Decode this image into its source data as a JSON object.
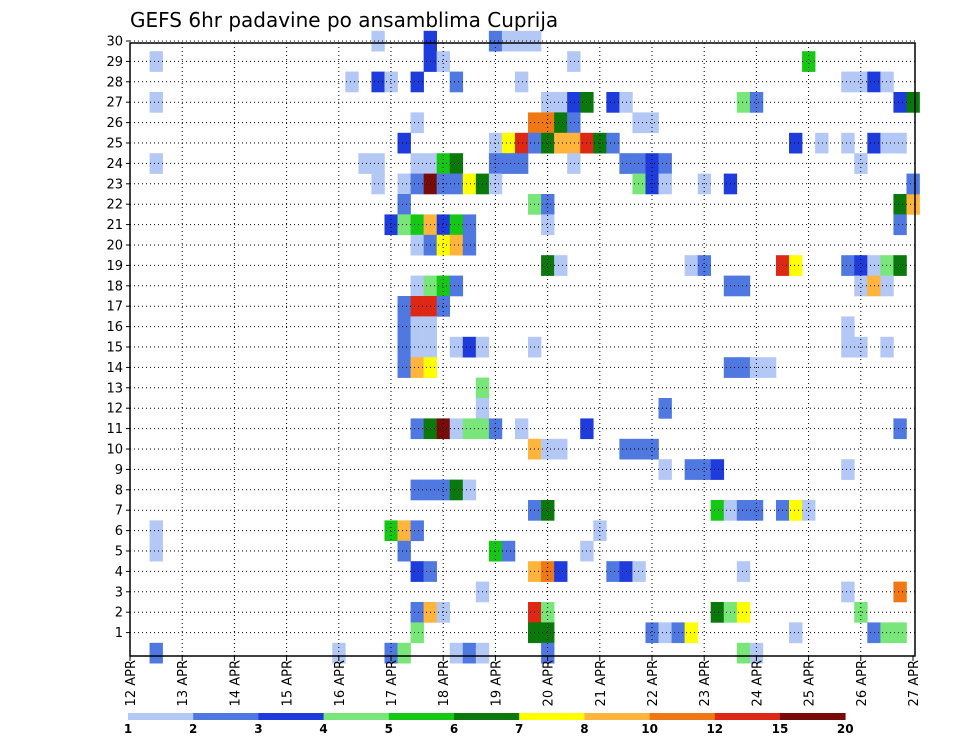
{
  "chart_data": {
    "type": "heatmap",
    "title": "GEFS 6hr padavine po ansamblima Cuprija",
    "xlabel": "",
    "ylabel": "",
    "x_tick_labels": [
      "12 APR",
      "13 APR",
      "14 APR",
      "15 APR",
      "16 APR",
      "17 APR",
      "18 APR",
      "19 APR",
      "20 APR",
      "21 APR",
      "22 APR",
      "23 APR",
      "24 APR",
      "25 APR",
      "26 APR",
      "27 APR"
    ],
    "y_tick_labels": [
      "1",
      "2",
      "3",
      "4",
      "5",
      "6",
      "7",
      "8",
      "9",
      "10",
      "11",
      "12",
      "13",
      "14",
      "15",
      "16",
      "17",
      "18",
      "19",
      "20",
      "21",
      "22",
      "23",
      "24",
      "25",
      "26",
      "27",
      "28",
      "29",
      "30"
    ],
    "xlim_steps": [
      0,
      60
    ],
    "ylim_members": [
      1,
      30
    ],
    "grid": true,
    "colorbar": {
      "boundaries": [
        "1",
        "2",
        "3",
        "4",
        "5",
        "6",
        "7",
        "8",
        "10",
        "12",
        "15",
        "20"
      ],
      "colors": [
        "#b4c8f5",
        "#5078e1",
        "#1e3cdc",
        "#78e678",
        "#14c814",
        "#0a780a",
        "#ffff00",
        "#ffb43c",
        "#f07814",
        "#dc2814",
        "#780a0a"
      ]
    },
    "cells": [
      [
        29,
        2,
        1
      ],
      [
        27,
        2,
        1
      ],
      [
        24,
        2,
        1
      ],
      [
        6,
        2,
        1
      ],
      [
        5,
        2,
        1
      ],
      [
        0,
        2,
        2
      ],
      [
        28,
        17,
        1
      ],
      [
        30,
        19,
        1
      ],
      [
        29,
        23,
        3
      ],
      [
        30,
        23,
        3
      ],
      [
        28,
        19,
        3
      ],
      [
        28,
        20,
        1
      ],
      [
        28,
        22,
        3
      ],
      [
        28,
        25,
        2
      ],
      [
        29,
        24,
        1
      ],
      [
        30,
        28,
        2
      ],
      [
        30,
        29,
        1
      ],
      [
        30,
        30,
        1
      ],
      [
        30,
        31,
        1
      ],
      [
        28,
        30,
        1
      ],
      [
        29,
        34,
        1
      ],
      [
        27,
        32,
        1
      ],
      [
        27,
        33,
        1
      ],
      [
        27,
        34,
        3
      ],
      [
        27,
        35,
        6
      ],
      [
        27,
        37,
        3
      ],
      [
        27,
        38,
        1
      ],
      [
        26,
        22,
        1
      ],
      [
        26,
        31,
        9
      ],
      [
        26,
        32,
        9
      ],
      [
        26,
        33,
        6
      ],
      [
        26,
        34,
        2
      ],
      [
        26,
        39,
        1
      ],
      [
        26,
        40,
        1
      ],
      [
        25,
        21,
        3
      ],
      [
        25,
        28,
        1
      ],
      [
        25,
        29,
        7
      ],
      [
        25,
        30,
        10
      ],
      [
        25,
        31,
        2
      ],
      [
        25,
        32,
        6
      ],
      [
        25,
        33,
        8
      ],
      [
        25,
        34,
        8
      ],
      [
        25,
        35,
        10
      ],
      [
        25,
        36,
        6
      ],
      [
        25,
        37,
        2
      ],
      [
        24,
        18,
        1
      ],
      [
        24,
        19,
        1
      ],
      [
        24,
        22,
        1
      ],
      [
        24,
        23,
        1
      ],
      [
        24,
        24,
        5
      ],
      [
        24,
        25,
        6
      ],
      [
        24,
        28,
        2
      ],
      [
        24,
        29,
        2
      ],
      [
        24,
        30,
        2
      ],
      [
        24,
        34,
        1
      ],
      [
        24,
        38,
        2
      ],
      [
        24,
        39,
        2
      ],
      [
        24,
        40,
        3
      ],
      [
        24,
        41,
        2
      ],
      [
        23,
        19,
        1
      ],
      [
        23,
        21,
        1
      ],
      [
        23,
        22,
        2
      ],
      [
        23,
        23,
        11
      ],
      [
        23,
        24,
        2
      ],
      [
        23,
        25,
        2
      ],
      [
        23,
        26,
        7
      ],
      [
        23,
        27,
        6
      ],
      [
        23,
        28,
        1
      ],
      [
        23,
        39,
        4
      ],
      [
        23,
        40,
        3
      ],
      [
        23,
        41,
        1
      ],
      [
        23,
        44,
        1
      ],
      [
        23,
        46,
        3
      ],
      [
        22,
        21,
        2
      ],
      [
        22,
        31,
        4
      ],
      [
        22,
        32,
        2
      ],
      [
        21,
        20,
        3
      ],
      [
        21,
        21,
        4
      ],
      [
        21,
        22,
        5
      ],
      [
        21,
        23,
        8
      ],
      [
        21,
        24,
        3
      ],
      [
        21,
        25,
        5
      ],
      [
        21,
        26,
        2
      ],
      [
        21,
        32,
        1
      ],
      [
        20,
        22,
        1
      ],
      [
        20,
        23,
        2
      ],
      [
        20,
        24,
        7
      ],
      [
        20,
        25,
        8
      ],
      [
        20,
        26,
        2
      ],
      [
        19,
        32,
        6
      ],
      [
        19,
        33,
        1
      ],
      [
        19,
        43,
        1
      ],
      [
        19,
        44,
        2
      ],
      [
        18,
        22,
        1
      ],
      [
        18,
        23,
        4
      ],
      [
        18,
        24,
        5
      ],
      [
        18,
        25,
        2
      ],
      [
        18,
        46,
        2
      ],
      [
        17,
        21,
        2
      ],
      [
        17,
        22,
        10
      ],
      [
        17,
        23,
        10
      ],
      [
        17,
        24,
        2
      ],
      [
        16,
        21,
        2
      ],
      [
        16,
        22,
        1
      ],
      [
        16,
        23,
        1
      ],
      [
        15,
        21,
        2
      ],
      [
        15,
        22,
        1
      ],
      [
        15,
        23,
        1
      ],
      [
        15,
        25,
        1
      ],
      [
        15,
        26,
        3
      ],
      [
        15,
        27,
        1
      ],
      [
        15,
        31,
        1
      ],
      [
        14,
        21,
        2
      ],
      [
        14,
        22,
        8
      ],
      [
        14,
        23,
        7
      ],
      [
        14,
        46,
        2
      ],
      [
        14,
        47,
        2
      ],
      [
        14,
        48,
        1
      ],
      [
        14,
        49,
        1
      ],
      [
        13,
        27,
        4
      ],
      [
        12,
        27,
        1
      ],
      [
        12,
        41,
        2
      ],
      [
        11,
        22,
        2
      ],
      [
        11,
        23,
        6
      ],
      [
        11,
        24,
        11
      ],
      [
        11,
        25,
        1
      ],
      [
        11,
        26,
        4
      ],
      [
        11,
        27,
        4
      ],
      [
        11,
        28,
        2
      ],
      [
        11,
        30,
        1
      ],
      [
        11,
        35,
        3
      ],
      [
        10,
        31,
        8
      ],
      [
        10,
        32,
        1
      ],
      [
        10,
        33,
        1
      ],
      [
        10,
        38,
        2
      ],
      [
        10,
        39,
        2
      ],
      [
        10,
        40,
        2
      ],
      [
        9,
        41,
        1
      ],
      [
        9,
        43,
        2
      ],
      [
        9,
        44,
        2
      ],
      [
        9,
        45,
        3
      ],
      [
        8,
        22,
        2
      ],
      [
        8,
        23,
        2
      ],
      [
        8,
        24,
        2
      ],
      [
        8,
        25,
        6
      ],
      [
        8,
        26,
        1
      ],
      [
        7,
        31,
        2
      ],
      [
        7,
        32,
        6
      ],
      [
        7,
        45,
        5
      ],
      [
        7,
        46,
        1
      ],
      [
        7,
        47,
        2
      ],
      [
        7,
        48,
        2
      ],
      [
        7,
        50,
        2
      ],
      [
        7,
        51,
        7
      ],
      [
        7,
        52,
        1
      ],
      [
        6,
        20,
        5
      ],
      [
        6,
        21,
        8
      ],
      [
        6,
        22,
        2
      ],
      [
        6,
        36,
        1
      ],
      [
        5,
        21,
        2
      ],
      [
        5,
        28,
        5
      ],
      [
        5,
        29,
        2
      ],
      [
        5,
        35,
        1
      ],
      [
        4,
        22,
        3
      ],
      [
        4,
        23,
        2
      ],
      [
        4,
        31,
        8
      ],
      [
        4,
        32,
        9
      ],
      [
        4,
        33,
        3
      ],
      [
        4,
        37,
        2
      ],
      [
        4,
        38,
        3
      ],
      [
        4,
        39,
        1
      ],
      [
        4,
        47,
        1
      ],
      [
        3,
        27,
        1
      ],
      [
        2,
        22,
        2
      ],
      [
        2,
        23,
        8
      ],
      [
        2,
        24,
        1
      ],
      [
        2,
        31,
        10
      ],
      [
        2,
        32,
        4
      ],
      [
        2,
        45,
        6
      ],
      [
        2,
        46,
        4
      ],
      [
        2,
        47,
        7
      ],
      [
        1,
        22,
        4
      ],
      [
        1,
        31,
        6
      ],
      [
        1,
        32,
        6
      ],
      [
        1,
        40,
        2
      ],
      [
        1,
        41,
        1
      ],
      [
        1,
        42,
        2
      ],
      [
        1,
        43,
        7
      ],
      [
        1,
        51,
        1
      ],
      [
        0,
        16,
        1
      ],
      [
        0,
        20,
        2
      ],
      [
        0,
        21,
        4
      ],
      [
        0,
        25,
        1
      ],
      [
        0,
        26,
        2
      ],
      [
        0,
        27,
        1
      ],
      [
        0,
        32,
        2
      ],
      [
        0,
        47,
        4
      ],
      [
        0,
        48,
        1
      ],
      [
        24,
        56,
        1
      ],
      [
        29,
        52,
        5
      ],
      [
        28,
        55,
        1
      ],
      [
        28,
        56,
        1
      ],
      [
        28,
        57,
        3
      ],
      [
        28,
        58,
        1
      ],
      [
        27,
        47,
        4
      ],
      [
        27,
        48,
        2
      ],
      [
        27,
        59,
        3
      ],
      [
        27,
        60,
        6
      ],
      [
        25,
        51,
        3
      ],
      [
        25,
        53,
        1
      ],
      [
        25,
        55,
        1
      ],
      [
        25,
        57,
        3
      ],
      [
        25,
        58,
        1
      ],
      [
        25,
        59,
        1
      ],
      [
        22,
        59,
        6
      ],
      [
        22,
        60,
        8
      ],
      [
        21,
        59,
        2
      ],
      [
        23,
        60,
        2
      ],
      [
        19,
        50,
        10
      ],
      [
        19,
        51,
        7
      ],
      [
        19,
        55,
        2
      ],
      [
        19,
        56,
        3
      ],
      [
        19,
        57,
        1
      ],
      [
        19,
        58,
        4
      ],
      [
        19,
        59,
        6
      ],
      [
        18,
        47,
        2
      ],
      [
        18,
        56,
        1
      ],
      [
        18,
        57,
        8
      ],
      [
        18,
        58,
        1
      ],
      [
        16,
        55,
        1
      ],
      [
        15,
        55,
        1
      ],
      [
        15,
        56,
        1
      ],
      [
        15,
        58,
        1
      ],
      [
        11,
        59,
        2
      ],
      [
        9,
        55,
        1
      ],
      [
        3,
        55,
        1
      ],
      [
        3,
        59,
        9
      ],
      [
        2,
        56,
        4
      ],
      [
        1,
        51,
        1
      ],
      [
        1,
        57,
        2
      ],
      [
        1,
        58,
        4
      ],
      [
        1,
        59,
        4
      ]
    ]
  }
}
